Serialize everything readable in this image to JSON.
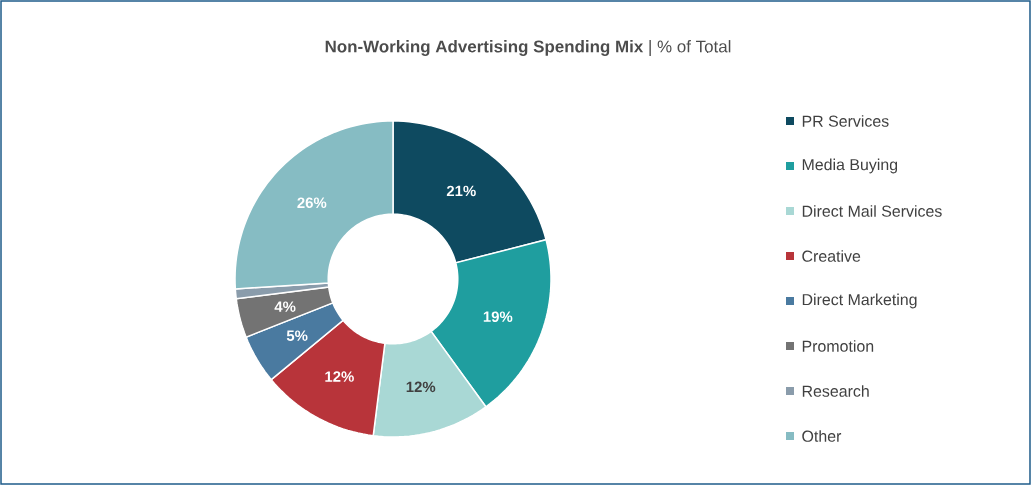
{
  "chart_data": {
    "type": "donut",
    "title": "**Non-Working Advertising Spending Mix** | % of Total",
    "categories": [
      "PR Services",
      "Media Buying",
      "Direct Mail Services",
      "Creative",
      "Direct Marketing",
      "Promotion",
      "Research",
      "Other"
    ],
    "values": [
      21,
      19,
      12,
      12,
      5,
      4,
      1,
      26
    ],
    "colors": [
      "#0e4a60",
      "#1f9e9f",
      "#a9d8d5",
      "#b8343a",
      "#4a7aa0",
      "#737373",
      "#8a9cab",
      "#86bcc3"
    ],
    "value_labels": [
      "21%",
      "19%",
      "12%",
      "12%",
      "5%",
      "4%",
      null,
      "26%"
    ],
    "legend": "right"
  }
}
